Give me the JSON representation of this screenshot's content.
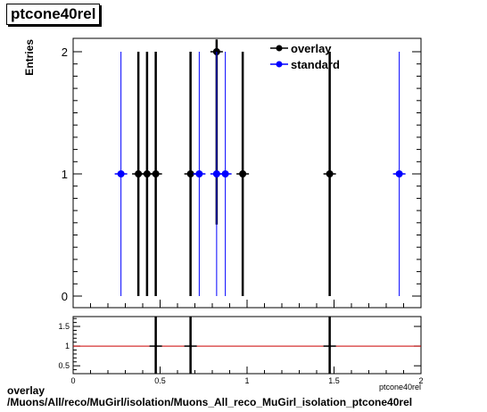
{
  "chart_data": [
    {
      "type": "scatter",
      "title": "ptcone40rel",
      "ylabel": "Entries",
      "xlim": [
        0,
        2
      ],
      "ylim": [
        0,
        2.1
      ],
      "yticks": [
        "0",
        "1",
        "2"
      ],
      "legend_position": "top-right",
      "series": [
        {
          "name": "overlay",
          "color": "#000000",
          "points": [
            {
              "x": 0.375,
              "y": 1,
              "err": 1
            },
            {
              "x": 0.425,
              "y": 1,
              "err": 1
            },
            {
              "x": 0.475,
              "y": 1,
              "err": 1
            },
            {
              "x": 0.675,
              "y": 1,
              "err": 1
            },
            {
              "x": 0.825,
              "y": 2,
              "err": 1.414
            },
            {
              "x": 0.975,
              "y": 1,
              "err": 1
            },
            {
              "x": 1.475,
              "y": 1,
              "err": 1
            }
          ]
        },
        {
          "name": "standard",
          "color": "#0000ff",
          "points": [
            {
              "x": 0.275,
              "y": 1,
              "err": 1
            },
            {
              "x": 0.725,
              "y": 1,
              "err": 1
            },
            {
              "x": 0.825,
              "y": 1,
              "err": 1
            },
            {
              "x": 0.875,
              "y": 1,
              "err": 1
            },
            {
              "x": 1.875,
              "y": 1,
              "err": 1
            }
          ]
        }
      ]
    },
    {
      "type": "scatter",
      "title": "",
      "xlabel": "ptcone40rel",
      "xlim": [
        0,
        2
      ],
      "ylim": [
        0.3,
        1.75
      ],
      "xticks": [
        "0",
        "0.5",
        "1",
        "1.5",
        "2"
      ],
      "yticks": [
        "0.5",
        "1",
        "1.5"
      ],
      "reference_line": {
        "y": 1,
        "color": "#cc0000"
      },
      "ratio_points": [
        {
          "x": 0.475,
          "y": 1,
          "err": 3
        },
        {
          "x": 0.675,
          "y": 1,
          "err": 3
        },
        {
          "x": 1.475,
          "y": 1,
          "err": 3
        }
      ]
    }
  ],
  "footer": {
    "line1": "overlay",
    "line2": "/Muons/All/reco/MuGirl/isolation/Muons_All_reco_MuGirl_isolation_ptcone40rel"
  }
}
